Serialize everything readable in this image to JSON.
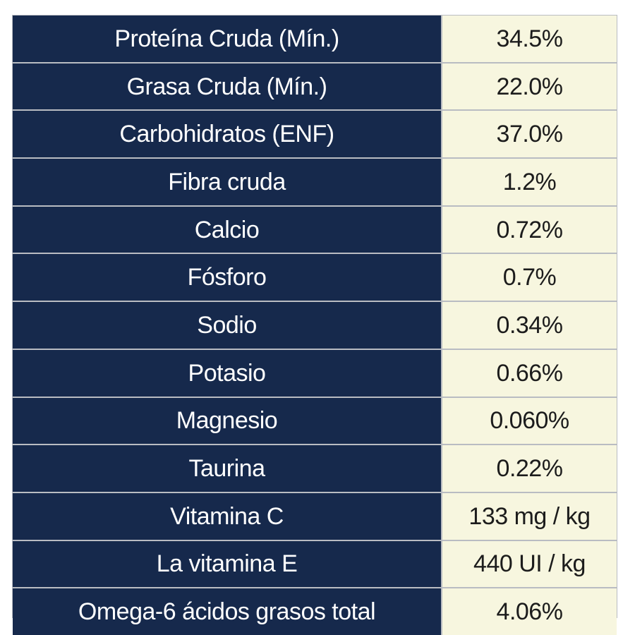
{
  "nutrition_table": {
    "rows": [
      {
        "label": "Proteína Cruda (Mín.)",
        "value": "34.5%"
      },
      {
        "label": "Grasa Cruda (Mín.)",
        "value": "22.0%"
      },
      {
        "label": "Carbohidratos (ENF)",
        "value": "37.0%"
      },
      {
        "label": "Fibra cruda",
        "value": "1.2%"
      },
      {
        "label": "Calcio",
        "value": "0.72%"
      },
      {
        "label": "Fósforo",
        "value": "0.7%"
      },
      {
        "label": "Sodio",
        "value": "0.34%"
      },
      {
        "label": "Potasio",
        "value": "0.66%"
      },
      {
        "label": "Magnesio",
        "value": "0.060%"
      },
      {
        "label": "Taurina",
        "value": "0.22%"
      },
      {
        "label": "Vitamina C",
        "value": "133 mg / kg"
      },
      {
        "label": "La vitamina E",
        "value": "440 UI / kg"
      },
      {
        "label": "Omega-6 ácidos grasos total",
        "value": "4.06%"
      }
    ]
  },
  "colors": {
    "label_background": "#16294c",
    "value_background": "#f7f6df",
    "label_text": "#ffffff",
    "value_text": "#1c1c1c",
    "grid_line": "#b9bcc2"
  }
}
